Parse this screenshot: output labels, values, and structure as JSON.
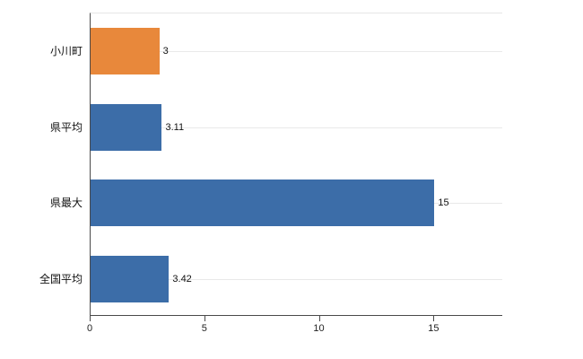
{
  "chart_data": {
    "type": "bar",
    "orientation": "horizontal",
    "title": "",
    "xlabel": "",
    "ylabel": "",
    "categories": [
      "小川町",
      "県平均",
      "県最大",
      "全国平均"
    ],
    "values": [
      3,
      3.11,
      15,
      3.42
    ],
    "value_labels": [
      "3",
      "3.11",
      "15",
      "3.42"
    ],
    "bar_colors": [
      "#e8883b",
      "#3c6da8",
      "#3c6da8",
      "#3c6da8"
    ],
    "xlim": [
      0,
      18
    ],
    "x_ticks": [
      0,
      5,
      10,
      15
    ],
    "grid": true,
    "legend": "none",
    "background_color": "#ffffff",
    "axis_color": "#4a4a4a",
    "gridline_color": "#e9e9e9"
  }
}
